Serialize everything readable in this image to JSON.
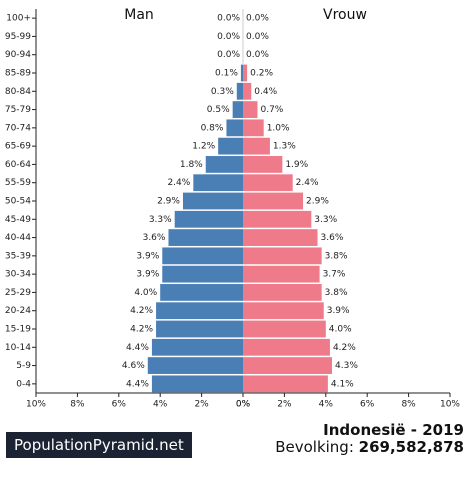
{
  "chart_data": {
    "type": "bar",
    "title_left": "Man",
    "title_right": "Vrouw",
    "categories": [
      "100+",
      "95-99",
      "90-94",
      "85-89",
      "80-84",
      "75-79",
      "70-74",
      "65-69",
      "60-64",
      "55-59",
      "50-54",
      "45-49",
      "40-44",
      "35-39",
      "30-34",
      "25-29",
      "20-24",
      "15-19",
      "10-14",
      "5-9",
      "0-4"
    ],
    "series": [
      {
        "name": "Man",
        "values": [
          0.0,
          0.0,
          0.0,
          0.1,
          0.3,
          0.5,
          0.8,
          1.2,
          1.8,
          2.4,
          2.9,
          3.3,
          3.6,
          3.9,
          3.9,
          4.0,
          4.2,
          4.2,
          4.4,
          4.6,
          4.4
        ],
        "labels": [
          "0.0%",
          "0.0%",
          "0.0%",
          "0.1%",
          "0.3%",
          "0.5%",
          "0.8%",
          "1.2%",
          "1.8%",
          "2.4%",
          "2.9%",
          "3.3%",
          "3.6%",
          "3.9%",
          "3.9%",
          "4.0%",
          "4.2%",
          "4.2%",
          "4.4%",
          "4.6%",
          "4.4%"
        ]
      },
      {
        "name": "Vrouw",
        "values": [
          0.0,
          0.0,
          0.0,
          0.2,
          0.4,
          0.7,
          1.0,
          1.3,
          1.9,
          2.4,
          2.9,
          3.3,
          3.6,
          3.8,
          3.7,
          3.8,
          3.9,
          4.0,
          4.2,
          4.3,
          4.1
        ],
        "labels": [
          "0.0%",
          "0.0%",
          "0.0%",
          "0.2%",
          "0.4%",
          "0.7%",
          "1.0%",
          "1.3%",
          "1.9%",
          "2.4%",
          "2.9%",
          "3.3%",
          "3.6%",
          "3.8%",
          "3.7%",
          "3.8%",
          "3.9%",
          "4.0%",
          "4.2%",
          "4.3%",
          "4.1%"
        ]
      }
    ],
    "xlim": [
      0,
      10
    ],
    "xticks_left": [
      "10%",
      "8%",
      "6%",
      "4%",
      "2%",
      "0%"
    ],
    "xticks_right": [
      "0%",
      "2%",
      "4%",
      "6%",
      "8%",
      "10%"
    ],
    "colors": {
      "male": "#4a7fb5",
      "female": "#ee7a8a"
    }
  },
  "footer": {
    "brand": "PopulationPyramid.net",
    "country_year": "Indonesië - 2019",
    "population_label": "Bevolking: ",
    "population_value": "269,582,878"
  }
}
